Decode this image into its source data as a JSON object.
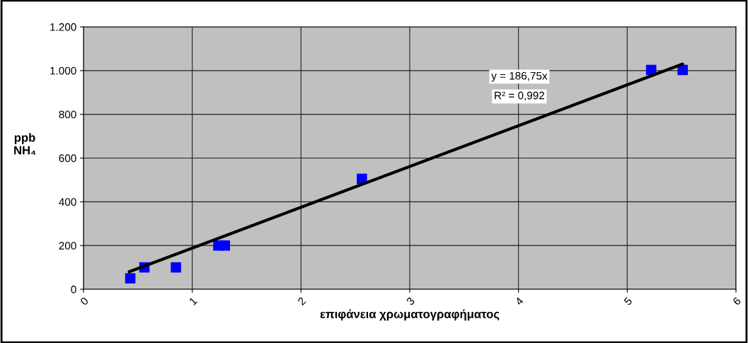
{
  "chart_data": {
    "type": "scatter",
    "xlabel": "επιφάνεια χρωματογραφήματος",
    "ylabel": "ppb\nNH₄",
    "series": [
      {
        "color": "#0000ff",
        "marker": "square",
        "x": [
          0.43,
          0.56,
          0.85,
          1.24,
          1.3,
          2.56,
          5.22,
          5.51
        ],
        "values": [
          50,
          100,
          100,
          200,
          200,
          505,
          1003,
          1003
        ]
      },
      {
        "type": "line",
        "color": "#000000",
        "marker": "none",
        "x": [
          0.42,
          5.51
        ],
        "values": [
          80,
          1030
        ]
      }
    ],
    "annotations": [
      "y = 186,75x",
      "R² = 0,992"
    ],
    "xlim": [
      0,
      6
    ],
    "xticks": [
      0,
      1,
      2,
      3,
      4,
      5,
      6
    ],
    "ylim": [
      0,
      1200
    ],
    "yticks": [
      0,
      200,
      400,
      600,
      800,
      {
        "value": 1000,
        "label": "1.000"
      },
      {
        "value": 1200,
        "label": "1.200"
      }
    ],
    "grid": true,
    "legend": false
  }
}
